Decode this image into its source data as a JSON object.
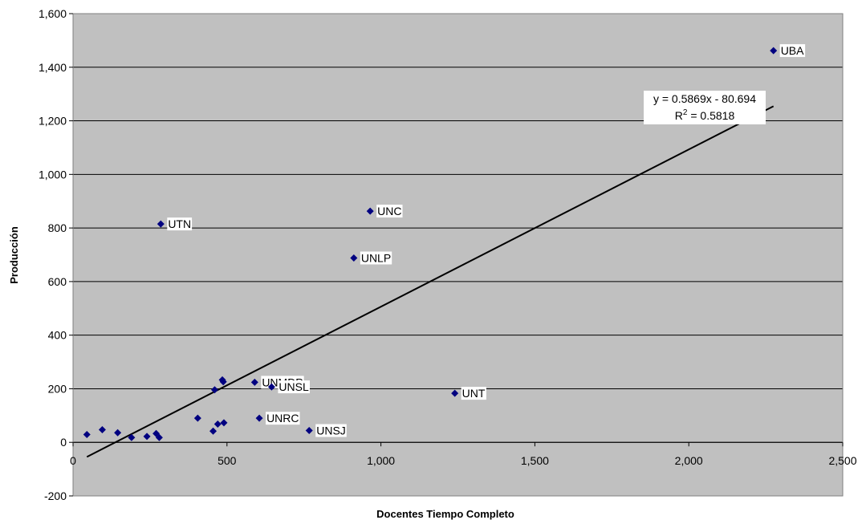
{
  "chart_data": {
    "type": "scatter",
    "xlabel": "Docentes Tiempo Completo",
    "ylabel": "Producción",
    "xlim": [
      0,
      2500
    ],
    "ylim": [
      -200,
      1600
    ],
    "x_ticks": [
      {
        "value": 0,
        "label": "0"
      },
      {
        "value": 500,
        "label": "500"
      },
      {
        "value": 1000,
        "label": "1,000"
      },
      {
        "value": 1500,
        "label": "1,500"
      },
      {
        "value": 2000,
        "label": "2,000"
      },
      {
        "value": 2500,
        "label": "2,500"
      }
    ],
    "y_ticks": [
      {
        "value": -200,
        "label": "-200"
      },
      {
        "value": 0,
        "label": "0"
      },
      {
        "value": 200,
        "label": "200"
      },
      {
        "value": 400,
        "label": "400"
      },
      {
        "value": 600,
        "label": "600"
      },
      {
        "value": 800,
        "label": "800"
      },
      {
        "value": 1000,
        "label": "1,000"
      },
      {
        "value": 1200,
        "label": "1,200"
      },
      {
        "value": 1400,
        "label": "1,400"
      },
      {
        "value": 1600,
        "label": "1,600"
      }
    ],
    "grid": "horizontal",
    "plot_background": "#c0c0c0",
    "marker_color": "#000080",
    "points": [
      {
        "x": 2275,
        "y": 1462,
        "label": "UBA"
      },
      {
        "x": 965,
        "y": 863,
        "label": "UNC"
      },
      {
        "x": 285,
        "y": 815,
        "label": "UTN"
      },
      {
        "x": 912,
        "y": 688,
        "label": "UNLP"
      },
      {
        "x": 1240,
        "y": 183,
        "label": "UNT"
      },
      {
        "x": 590,
        "y": 224,
        "label": "UNMDP"
      },
      {
        "x": 645,
        "y": 207,
        "label": "UNSL"
      },
      {
        "x": 605,
        "y": 90,
        "label": "UNRC"
      },
      {
        "x": 767,
        "y": 44,
        "label": "UNSJ"
      },
      {
        "x": 485,
        "y": 233,
        "label": ""
      },
      {
        "x": 488,
        "y": 226,
        "label": ""
      },
      {
        "x": 460,
        "y": 196,
        "label": ""
      },
      {
        "x": 405,
        "y": 90,
        "label": ""
      },
      {
        "x": 490,
        "y": 73,
        "label": ""
      },
      {
        "x": 470,
        "y": 68,
        "label": ""
      },
      {
        "x": 455,
        "y": 42,
        "label": ""
      },
      {
        "x": 95,
        "y": 47,
        "label": ""
      },
      {
        "x": 145,
        "y": 36,
        "label": ""
      },
      {
        "x": 45,
        "y": 29,
        "label": ""
      },
      {
        "x": 270,
        "y": 33,
        "label": ""
      },
      {
        "x": 240,
        "y": 22,
        "label": ""
      },
      {
        "x": 190,
        "y": 18,
        "label": ""
      },
      {
        "x": 280,
        "y": 18,
        "label": ""
      }
    ],
    "trendline": {
      "slope": 0.5869,
      "intercept": -80.694,
      "x_start": 45,
      "x_end": 2275,
      "equation_label": "y = 0.5869x - 80.694",
      "r2_prefix": "R",
      "r2_exponent": "2",
      "r2_value": " = 0.5818"
    }
  }
}
